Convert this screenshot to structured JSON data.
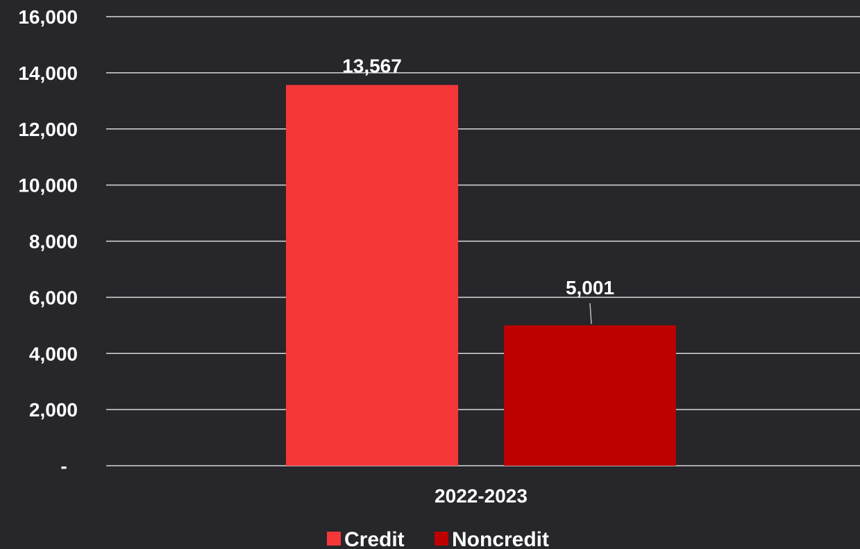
{
  "chart_data": {
    "type": "bar",
    "categories": [
      "2022-2023"
    ],
    "series": [
      {
        "name": "Credit",
        "values": [
          13567
        ],
        "color": "#f5373a",
        "label": "13,567"
      },
      {
        "name": "Noncredit",
        "values": [
          5001
        ],
        "color": "#bd0000",
        "label": "5,001"
      }
    ],
    "title": "",
    "xlabel": "",
    "ylabel": "",
    "ylim": [
      0,
      16000
    ],
    "yticks": [
      0,
      2000,
      4000,
      6000,
      8000,
      10000,
      12000,
      14000,
      16000
    ],
    "ytick_labels": [
      "-",
      "2,000",
      "4,000",
      "6,000",
      "8,000",
      "10,000",
      "12,000",
      "14,000",
      "16,000"
    ],
    "grid": true,
    "legend_position": "bottom"
  },
  "colors": {
    "background": "#27262b",
    "gridline": "#d9d9d9",
    "text": "#ffffff"
  }
}
